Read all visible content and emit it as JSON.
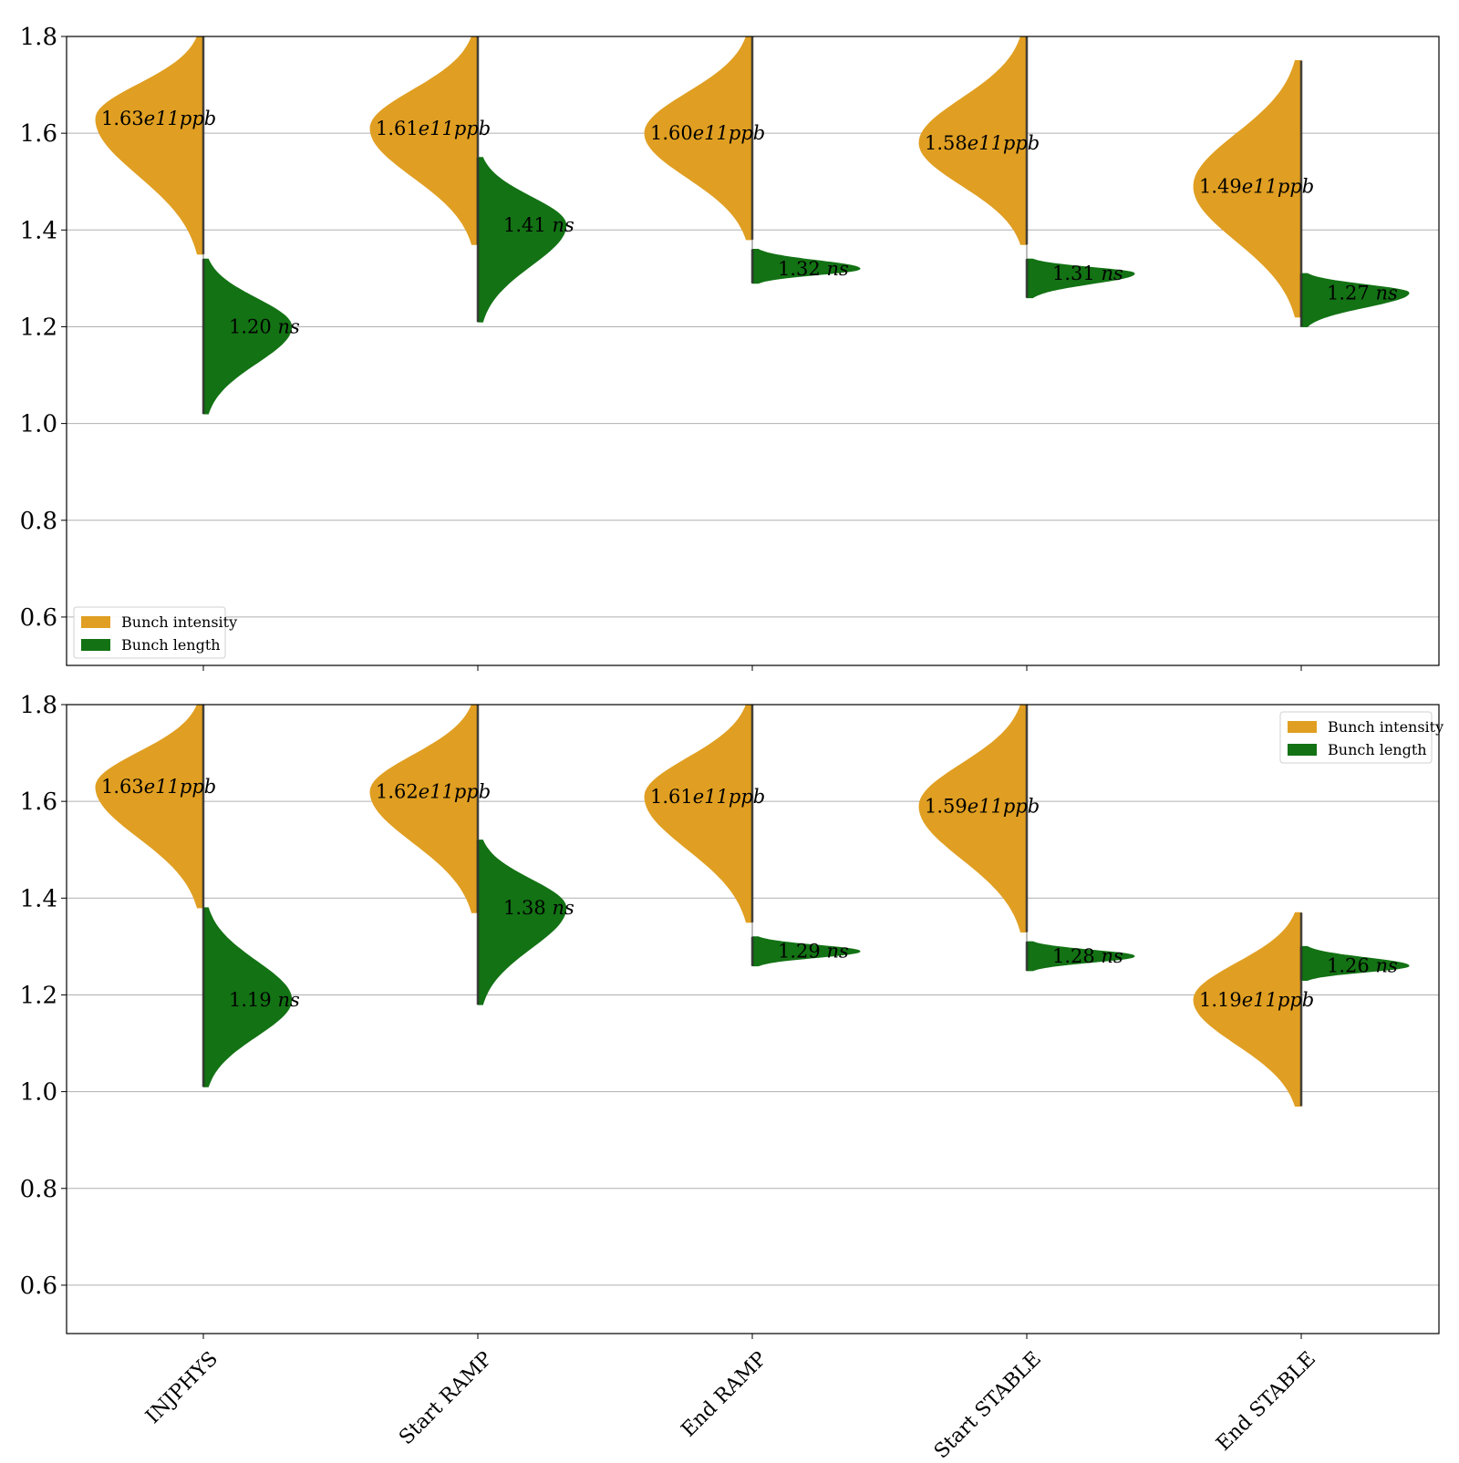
{
  "chart_data": [
    {
      "type": "violin",
      "panel": "top",
      "ylim": [
        0.5,
        1.8
      ],
      "yticks": [
        "0.6",
        "0.8",
        "1.0",
        "1.2",
        "1.4",
        "1.6",
        "1.8"
      ],
      "grid": "horizontal",
      "legend_placement": "lower-left",
      "categories": [
        "INJPHYS",
        "Start RAMP",
        "End RAMP",
        "Start STABLE",
        "End STABLE"
      ],
      "series": [
        {
          "name": "Bunch intensity",
          "color": "#e09f22",
          "side": "left",
          "unit_label": "e11ppb",
          "mean": [
            1.63,
            1.61,
            1.6,
            1.58,
            1.49
          ],
          "labels": [
            "1.63",
            "1.61",
            "1.60",
            "1.58",
            "1.49"
          ],
          "range": [
            [
              1.35,
              1.8
            ],
            [
              1.37,
              1.8
            ],
            [
              1.38,
              1.8
            ],
            [
              1.37,
              1.8
            ],
            [
              1.22,
              1.75
            ]
          ]
        },
        {
          "name": "Bunch length",
          "color": "#137214",
          "side": "right",
          "unit_label": "ns",
          "mean": [
            1.2,
            1.41,
            1.32,
            1.31,
            1.27
          ],
          "labels": [
            "1.20",
            "1.41",
            "1.32",
            "1.31",
            "1.27"
          ],
          "range": [
            [
              1.02,
              1.34
            ],
            [
              1.21,
              1.55
            ],
            [
              1.29,
              1.36
            ],
            [
              1.26,
              1.34
            ],
            [
              1.2,
              1.31
            ]
          ]
        }
      ]
    },
    {
      "type": "violin",
      "panel": "bottom",
      "ylim": [
        0.5,
        1.8
      ],
      "yticks": [
        "0.6",
        "0.8",
        "1.0",
        "1.2",
        "1.4",
        "1.6",
        "1.8"
      ],
      "grid": "horizontal",
      "legend_placement": "upper-right",
      "categories": [
        "INJPHYS",
        "Start RAMP",
        "End RAMP",
        "Start STABLE",
        "End STABLE"
      ],
      "series": [
        {
          "name": "Bunch intensity",
          "color": "#e09f22",
          "side": "left",
          "unit_label": "e11ppb",
          "mean": [
            1.63,
            1.62,
            1.61,
            1.59,
            1.19
          ],
          "labels": [
            "1.63",
            "1.62",
            "1.61",
            "1.59",
            "1.19"
          ],
          "range": [
            [
              1.38,
              1.8
            ],
            [
              1.37,
              1.8
            ],
            [
              1.35,
              1.8
            ],
            [
              1.33,
              1.8
            ],
            [
              0.97,
              1.37
            ]
          ]
        },
        {
          "name": "Bunch length",
          "color": "#137214",
          "side": "right",
          "unit_label": "ns",
          "mean": [
            1.19,
            1.38,
            1.29,
            1.28,
            1.26
          ],
          "labels": [
            "1.19",
            "1.38",
            "1.29",
            "1.28",
            "1.26"
          ],
          "range": [
            [
              1.01,
              1.38
            ],
            [
              1.18,
              1.52
            ],
            [
              1.26,
              1.32
            ],
            [
              1.25,
              1.31
            ],
            [
              1.23,
              1.3
            ]
          ]
        }
      ]
    }
  ]
}
